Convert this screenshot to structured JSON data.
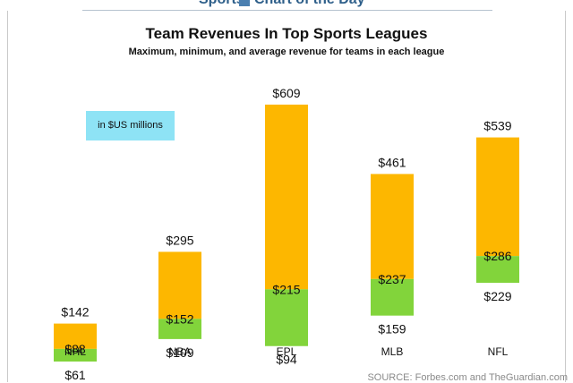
{
  "header": {
    "left_text": "Sports",
    "right_text": "Chart of the Day",
    "logo_icon": "chart-of-the-day-logo-icon"
  },
  "chart_data": {
    "type": "bar",
    "title": "Team Revenues In Top Sports Leagues",
    "subtitle": "Maximum, minimum, and average revenue for teams in each league",
    "unit_note": "in $US millions",
    "categories": [
      "NHL",
      "NBA",
      "EPL",
      "MLB",
      "NFL"
    ],
    "series": [
      {
        "name": "Maximum",
        "values": [
          142,
          295,
          609,
          461,
          539
        ]
      },
      {
        "name": "Average",
        "values": [
          88,
          152,
          215,
          237,
          286
        ]
      },
      {
        "name": "Minimum",
        "values": [
          61,
          109,
          94,
          159,
          229
        ]
      }
    ],
    "labels": {
      "max": [
        "$142",
        "$295",
        "$609",
        "$461",
        "$539"
      ],
      "avg": [
        "$88",
        "$152",
        "$215",
        "$237",
        "$286"
      ],
      "min": [
        "$61",
        "$109",
        "$94",
        "$159",
        "$229"
      ]
    },
    "colors": {
      "upper": "#fdb700",
      "lower": "#82d43b"
    },
    "ylim": [
      0,
      650
    ],
    "grid": false,
    "legend": "none"
  },
  "source": "SOURCE: Forbes.com and TheGuardian.com"
}
